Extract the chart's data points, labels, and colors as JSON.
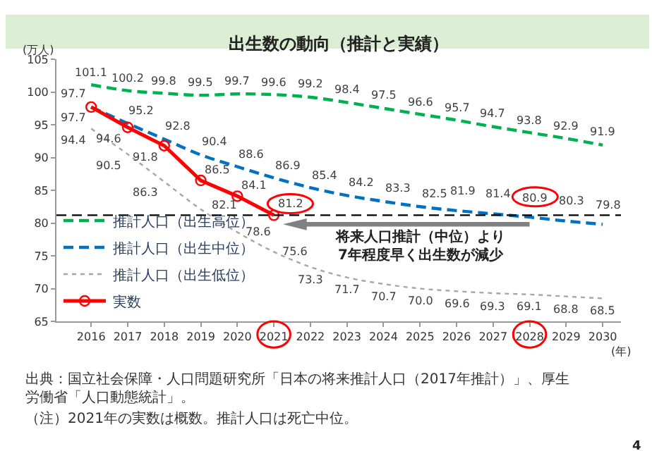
{
  "chart_data": {
    "type": "line",
    "title": "出生数の動向（推計と実績）",
    "xlabel": "(年)",
    "ylabel": "(万人)",
    "categories": [
      "2016",
      "2017",
      "2018",
      "2019",
      "2020",
      "2021",
      "2022",
      "2023",
      "2024",
      "2025",
      "2026",
      "2027",
      "2028",
      "2029",
      "2030"
    ],
    "series": [
      {
        "name": "推計人口（出生高位）",
        "color": "#00b050",
        "line_style": "dashed",
        "marker": "none",
        "values": [
          101.1,
          100.2,
          99.8,
          99.5,
          99.7,
          99.6,
          99.2,
          98.4,
          97.5,
          96.6,
          95.7,
          94.7,
          93.8,
          92.9,
          91.9
        ]
      },
      {
        "name": "推計人口（出生中位）",
        "color": "#0070c0",
        "line_style": "dashed",
        "marker": "none",
        "values": [
          97.7,
          95.2,
          92.8,
          90.4,
          88.6,
          86.9,
          85.4,
          84.2,
          83.3,
          82.5,
          81.9,
          81.4,
          80.9,
          80.3,
          79.8
        ]
      },
      {
        "name": "推計人口（出生低位）",
        "color": "#a6a6a6",
        "line_style": "dotted",
        "marker": "none",
        "values": [
          94.4,
          90.5,
          86.3,
          82.1,
          78.6,
          75.6,
          73.3,
          71.7,
          70.7,
          70.0,
          69.6,
          69.3,
          69.1,
          68.8,
          68.5
        ],
        "value_labels": [
          "94.4",
          "90.5",
          "86.3",
          "82.1",
          "78.6",
          "75.6",
          "73.3",
          "71.7",
          "70.7",
          "70.0",
          "69.6",
          "69.3",
          "69.1",
          "68.8",
          "68.5"
        ]
      },
      {
        "name": "実数",
        "color": "#ff0000",
        "line_style": "solid",
        "marker": "circle",
        "values": [
          97.7,
          94.6,
          91.8,
          86.5,
          84.1,
          81.2,
          null,
          null,
          null,
          null,
          null,
          null,
          null,
          null,
          null
        ]
      }
    ],
    "ylim": [
      65,
      105
    ],
    "yticks": [
      65,
      70,
      75,
      80,
      85,
      90,
      95,
      100,
      105
    ],
    "ref_lines": [
      {
        "axis": "y",
        "value": 81.2,
        "color": "#000000",
        "line_style": "dashed"
      }
    ],
    "data_labels": true,
    "grid": false,
    "legend": "bottom left",
    "annotations": [
      "将来人口推計（中位）より\n7年程度早く出生数が減少",
      "出典：国立社会保障・人口問題研究所「日本の将来推計人口（2017年推計）」、厚生労働省「人口動態統計」。",
      "（注）2021年の実数は概数。推計人口は死亡中位。",
      "4"
    ]
  }
}
